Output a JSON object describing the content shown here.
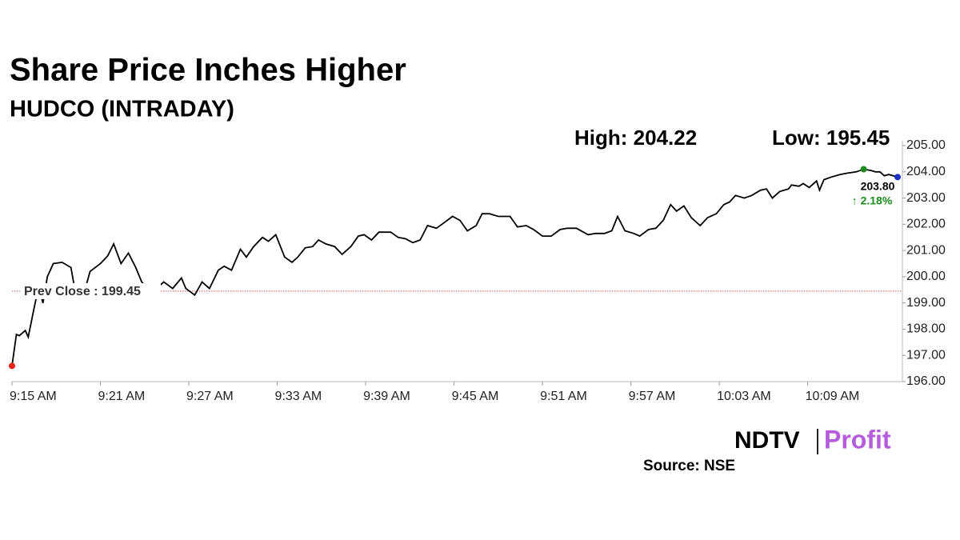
{
  "chart_data": {
    "type": "line",
    "title": "Share Price Inches Higher",
    "subtitle": "HUDCO (INTRADAY)",
    "high_label": "High: 204.22",
    "low_label": "Low: 195.45",
    "last_label": "203.80",
    "change_label": "↑ 2.18%",
    "source": "Source: NSE",
    "logo": [
      "NDTV",
      "Profit"
    ],
    "prev_close": {
      "value": 199.45,
      "label": "Prev Close : 199.45",
      "color": "#e05050"
    },
    "xlim": [
      0,
      60.1
    ],
    "xticks": [
      {
        "value": 0,
        "label": "9:15 AM"
      },
      {
        "value": 6,
        "label": "9:21 AM"
      },
      {
        "value": 12,
        "label": "9:27 AM"
      },
      {
        "value": 18,
        "label": "9:33 AM"
      },
      {
        "value": 24,
        "label": "9:39 AM"
      },
      {
        "value": 30,
        "label": "9:45 AM"
      },
      {
        "value": 36,
        "label": "9:51 AM"
      },
      {
        "value": 42,
        "label": "9:57 AM"
      },
      {
        "value": 48,
        "label": "10:03 AM"
      },
      {
        "value": 54,
        "label": "10:09 AM"
      }
    ],
    "ylim": [
      196,
      205
    ],
    "yticks": [
      {
        "value": 196,
        "label": "196.00"
      },
      {
        "value": 197,
        "label": "197.00"
      },
      {
        "value": 198,
        "label": "198.00"
      },
      {
        "value": 199,
        "label": "199.00"
      },
      {
        "value": 200,
        "label": "200.00"
      },
      {
        "value": 201,
        "label": "201.00"
      },
      {
        "value": 202,
        "label": "202.00"
      },
      {
        "value": 203,
        "label": "203.00"
      },
      {
        "value": 204,
        "label": "204.00"
      },
      {
        "value": 205,
        "label": "205.00"
      }
    ],
    "start_color": "#e8231a",
    "high_color": "#1e8c1e",
    "last_color": "#1f2fc8",
    "change_color": "#1e8c1e",
    "series": [
      {
        "color": "#000000",
        "x": [
          0,
          0.3,
          0.5,
          0.9,
          1.1,
          1.5,
          1.8,
          2.1,
          2.4,
          2.8,
          3.4,
          4.0,
          4.3,
          4.8,
          5.3,
          6.0,
          6.5,
          6.9,
          7.4,
          7.9,
          8.4,
          8.8,
          9.5,
          10.3,
          10.9,
          11.5,
          11.8,
          12.4,
          12.9,
          13.4,
          14.0,
          14.4,
          14.9,
          15.5,
          15.9,
          16.4,
          17.0,
          17.4,
          17.9,
          18.5,
          19.0,
          19.4,
          19.9,
          20.4,
          20.8,
          21.3,
          21.9,
          22.4,
          23.0,
          23.5,
          23.9,
          24.4,
          24.9,
          25.7,
          26.2,
          26.7,
          27.2,
          27.7,
          28.2,
          28.8,
          29.3,
          29.9,
          30.4,
          30.9,
          31.5,
          31.9,
          32.4,
          33.0,
          33.8,
          34.3,
          34.9,
          35.4,
          36.0,
          36.6,
          37.2,
          37.7,
          38.3,
          39.1,
          39.6,
          40.2,
          40.7,
          41.1,
          41.6,
          42.2,
          42.6,
          43.2,
          43.7,
          44.2,
          44.7,
          45.1,
          45.6,
          46.1,
          46.7,
          47.2,
          47.8,
          48.3,
          48.7,
          49.1,
          49.7,
          50.2,
          50.8,
          51.2,
          51.6,
          52.1,
          52.7,
          52.9,
          53.4,
          53.7,
          54.1,
          54.6,
          54.8,
          55.1,
          55.6,
          56.2,
          56.7,
          57.3,
          57.8,
          58.3,
          58.6,
          58.9,
          59.2,
          59.5,
          60.1
        ],
        "values": [
          196.6,
          197.8,
          197.75,
          197.95,
          197.7,
          198.8,
          199.6,
          199.0,
          200.0,
          200.5,
          200.55,
          200.35,
          199.4,
          199.2,
          200.2,
          200.5,
          200.8,
          201.25,
          200.5,
          200.9,
          200.35,
          199.8,
          199.4,
          199.8,
          199.55,
          199.95,
          199.55,
          199.3,
          199.8,
          199.55,
          200.25,
          200.4,
          200.25,
          201.05,
          200.75,
          201.15,
          201.5,
          201.35,
          201.6,
          200.75,
          200.55,
          200.75,
          201.1,
          201.15,
          201.4,
          201.25,
          201.15,
          200.85,
          201.15,
          201.55,
          201.6,
          201.4,
          201.7,
          201.7,
          201.5,
          201.45,
          201.3,
          201.4,
          201.95,
          201.85,
          202.05,
          202.3,
          202.15,
          201.75,
          201.95,
          202.4,
          202.4,
          202.3,
          202.3,
          201.9,
          201.95,
          201.8,
          201.55,
          201.55,
          201.8,
          201.85,
          201.85,
          201.6,
          201.65,
          201.65,
          201.75,
          202.3,
          201.75,
          201.65,
          201.55,
          201.8,
          201.85,
          202.15,
          202.75,
          202.5,
          202.7,
          202.25,
          201.95,
          202.25,
          202.4,
          202.75,
          202.85,
          203.1,
          203.0,
          203.1,
          203.3,
          203.35,
          203.0,
          203.25,
          203.35,
          203.5,
          203.45,
          203.55,
          203.4,
          203.65,
          203.3,
          203.7,
          203.8,
          203.9,
          203.95,
          204.0,
          204.1,
          204.05,
          204.0,
          204.0,
          203.85,
          203.9,
          203.8
        ]
      }
    ]
  }
}
